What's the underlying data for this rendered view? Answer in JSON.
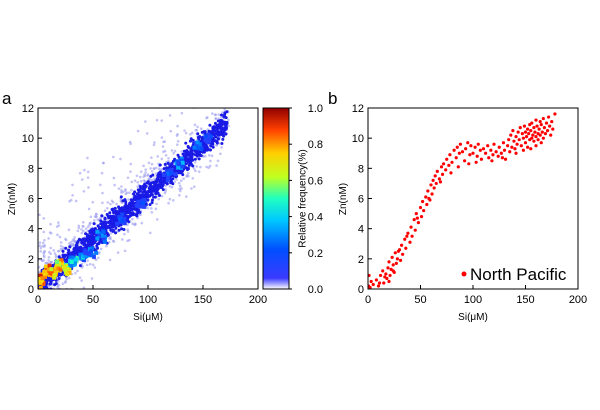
{
  "chart_data": [
    {
      "panel": "a",
      "type": "heatmap",
      "xlabel": "Si(μM)",
      "ylabel": "Zn(nM)",
      "xlim": [
        0,
        200
      ],
      "ylim": [
        0,
        12
      ],
      "xticks": [
        0,
        50,
        100,
        150,
        200
      ],
      "yticks": [
        0,
        2,
        4,
        6,
        8,
        10,
        12
      ],
      "colorbar": {
        "label": "Relative frequency(%)",
        "range": [
          0.0,
          1.0
        ],
        "ticks": [
          "0.0",
          "0.2",
          "0.4",
          "0.6",
          "0.8",
          "1.0"
        ],
        "colormap": "jet"
      },
      "hotspots": [
        {
          "x": 3,
          "y": 0.6,
          "v": 1.0
        },
        {
          "x": 8,
          "y": 1.2,
          "v": 0.95
        },
        {
          "x": 14,
          "y": 1.0,
          "v": 0.9
        },
        {
          "x": 20,
          "y": 1.6,
          "v": 0.85
        },
        {
          "x": 26,
          "y": 1.3,
          "v": 0.8
        },
        {
          "x": 32,
          "y": 1.8,
          "v": 0.55
        },
        {
          "x": 40,
          "y": 2.1,
          "v": 0.45
        },
        {
          "x": 48,
          "y": 2.5,
          "v": 0.35
        },
        {
          "x": 58,
          "y": 3.6,
          "v": 0.4
        },
        {
          "x": 75,
          "y": 4.6,
          "v": 0.3
        },
        {
          "x": 95,
          "y": 5.6,
          "v": 0.25
        },
        {
          "x": 120,
          "y": 7.6,
          "v": 0.3
        },
        {
          "x": 130,
          "y": 8.3,
          "v": 0.4
        },
        {
          "x": 145,
          "y": 9.5,
          "v": 0.3
        },
        {
          "x": 155,
          "y": 10.0,
          "v": 0.25
        }
      ]
    },
    {
      "panel": "b",
      "type": "scatter",
      "xlabel": "Si(μM)",
      "ylabel": "Zn(nM)",
      "xlim": [
        0,
        200
      ],
      "ylim": [
        0,
        12
      ],
      "xticks": [
        0,
        50,
        100,
        150,
        200
      ],
      "yticks": [
        0,
        2,
        4,
        6,
        8,
        10,
        12
      ],
      "series": [
        {
          "name": "North Pacific",
          "color": "#ff0000",
          "points": [
            [
              0.5,
              0.2
            ],
            [
              1,
              0.9
            ],
            [
              2,
              0.1
            ],
            [
              3,
              0.5
            ],
            [
              5,
              0.3
            ],
            [
              8,
              0.6
            ],
            [
              10,
              0.2
            ],
            [
              12,
              0.9
            ],
            [
              14,
              1.2
            ],
            [
              15,
              0.4
            ],
            [
              17,
              1.0
            ],
            [
              18,
              0.7
            ],
            [
              19,
              1.4
            ],
            [
              20,
              1.8
            ],
            [
              21,
              0.9
            ],
            [
              22,
              1.3
            ],
            [
              23,
              2.1
            ],
            [
              24,
              1.6
            ],
            [
              25,
              1.1
            ],
            [
              26,
              2.4
            ],
            [
              27,
              1.7
            ],
            [
              28,
              2.0
            ],
            [
              30,
              2.6
            ],
            [
              31,
              1.9
            ],
            [
              32,
              2.9
            ],
            [
              33,
              2.3
            ],
            [
              35,
              3.3
            ],
            [
              36,
              2.7
            ],
            [
              38,
              3.7
            ],
            [
              40,
              3.1
            ],
            [
              41,
              4.1
            ],
            [
              42,
              3.5
            ],
            [
              44,
              4.6
            ],
            [
              45,
              3.9
            ],
            [
              46,
              5.0
            ],
            [
              48,
              4.4
            ],
            [
              50,
              5.4
            ],
            [
              51,
              4.8
            ],
            [
              52,
              5.8
            ],
            [
              53,
              5.2
            ],
            [
              55,
              6.1
            ],
            [
              56,
              5.6
            ],
            [
              57,
              6.5
            ],
            [
              58,
              6.0
            ],
            [
              60,
              6.9
            ],
            [
              61,
              6.3
            ],
            [
              62,
              7.2
            ],
            [
              63,
              6.7
            ],
            [
              64,
              7.5
            ],
            [
              65,
              7.0
            ],
            [
              66,
              7.8
            ],
            [
              68,
              7.3
            ],
            [
              70,
              8.1
            ],
            [
              71,
              7.6
            ],
            [
              72,
              8.3
            ],
            [
              74,
              7.9
            ],
            [
              75,
              8.6
            ],
            [
              77,
              8.2
            ],
            [
              78,
              8.9
            ],
            [
              80,
              8.4
            ],
            [
              82,
              9.2
            ],
            [
              84,
              8.7
            ],
            [
              85,
              9.4
            ],
            [
              87,
              9.0
            ],
            [
              88,
              9.6
            ],
            [
              90,
              9.1
            ],
            [
              92,
              8.5
            ],
            [
              93,
              9.3
            ],
            [
              95,
              9.7
            ],
            [
              97,
              8.9
            ],
            [
              98,
              9.5
            ],
            [
              100,
              9.0
            ],
            [
              102,
              9.4
            ],
            [
              104,
              8.8
            ],
            [
              105,
              9.6
            ],
            [
              107,
              9.2
            ],
            [
              108,
              8.6
            ],
            [
              110,
              9.3
            ],
            [
              112,
              9.0
            ],
            [
              114,
              9.5
            ],
            [
              115,
              8.7
            ],
            [
              117,
              9.2
            ],
            [
              119,
              8.9
            ],
            [
              120,
              9.6
            ],
            [
              122,
              9.1
            ],
            [
              124,
              8.8
            ],
            [
              125,
              9.4
            ],
            [
              127,
              9.0
            ],
            [
              129,
              9.7
            ],
            [
              130,
              9.2
            ],
            [
              131,
              8.6
            ],
            [
              133,
              9.5
            ],
            [
              134,
              9.9
            ],
            [
              135,
              9.1
            ],
            [
              136,
              10.2
            ],
            [
              137,
              9.4
            ],
            [
              138,
              10.5
            ],
            [
              139,
              9.8
            ],
            [
              140,
              9.3
            ],
            [
              141,
              10.1
            ],
            [
              142,
              9.6
            ],
            [
              143,
              10.4
            ],
            [
              144,
              9.9
            ],
            [
              145,
              10.7
            ],
            [
              146,
              9.5
            ],
            [
              147,
              10.3
            ],
            [
              148,
              10.0
            ],
            [
              149,
              10.8
            ],
            [
              150,
              9.7
            ],
            [
              150,
              10.4
            ],
            [
              151,
              10.1
            ],
            [
              152,
              9.4
            ],
            [
              152,
              10.6
            ],
            [
              153,
              10.3
            ],
            [
              154,
              9.9
            ],
            [
              154,
              10.9
            ],
            [
              155,
              10.5
            ],
            [
              156,
              10.0
            ],
            [
              156,
              11.0
            ],
            [
              157,
              10.2
            ],
            [
              158,
              10.7
            ],
            [
              158,
              9.8
            ],
            [
              159,
              10.4
            ],
            [
              160,
              11.2
            ],
            [
              160,
              10.1
            ],
            [
              161,
              10.8
            ],
            [
              162,
              10.3
            ],
            [
              162,
              9.9
            ],
            [
              163,
              10.6
            ],
            [
              164,
              11.1
            ],
            [
              164,
              10.2
            ],
            [
              165,
              10.9
            ],
            [
              166,
              10.4
            ],
            [
              167,
              11.3
            ],
            [
              167,
              10.0
            ],
            [
              168,
              10.7
            ],
            [
              169,
              10.3
            ],
            [
              170,
              11.0
            ],
            [
              171,
              10.5
            ],
            [
              172,
              11.4
            ],
            [
              173,
              10.8
            ],
            [
              174,
              10.2
            ],
            [
              175,
              11.1
            ],
            [
              176,
              10.6
            ],
            [
              178,
              11.6
            ],
            [
              148,
              9.2
            ],
            [
              141,
              9.0
            ],
            [
              155,
              9.3
            ],
            [
              160,
              9.5
            ],
            [
              165,
              9.7
            ],
            [
              118,
              8.5
            ],
            [
              128,
              8.7
            ],
            [
              103,
              8.4
            ],
            [
              96,
              8.3
            ],
            [
              86,
              8.1
            ],
            [
              79,
              7.7
            ],
            [
              69,
              7.1
            ],
            [
              59,
              5.9
            ],
            [
              47,
              4.7
            ],
            [
              37,
              3.5
            ],
            [
              29,
              2.5
            ],
            [
              24,
              1.2
            ],
            [
              20,
              0.5
            ],
            [
              16,
              0.8
            ],
            [
              11,
              0.4
            ]
          ]
        }
      ],
      "legend": {
        "position": "bottom-right",
        "label": "North Pacific"
      }
    }
  ]
}
